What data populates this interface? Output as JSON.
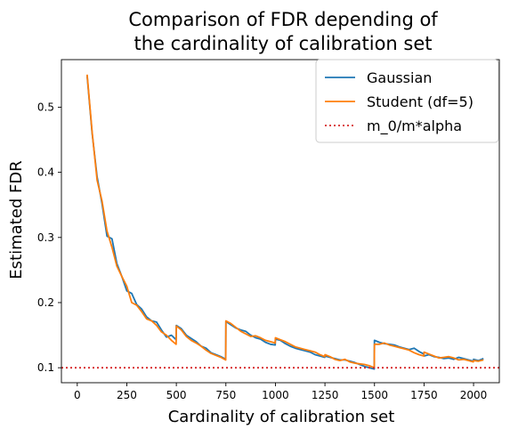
{
  "chart_data": {
    "type": "line",
    "title_line1": "Comparison of FDR depending of",
    "title_line2": "the cardinality of calibration set",
    "xlabel": "Cardinality of calibration set",
    "ylabel": "Estimated FDR",
    "xlim": [
      -80,
      2130
    ],
    "ylim": [
      0.077,
      0.573
    ],
    "xticks": [
      0,
      250,
      500,
      750,
      1000,
      1250,
      1500,
      1750,
      2000
    ],
    "yticks": [
      0.1,
      0.2,
      0.3,
      0.4,
      0.5
    ],
    "grid": false,
    "legend": "top-right",
    "hline": {
      "name": "m_0/m*alpha",
      "value": 0.1,
      "color": "#d62728",
      "style": "dotted"
    },
    "series": [
      {
        "name": "Gaussian",
        "color": "#1f77b4",
        "x": [
          50,
          75,
          100,
          125,
          150,
          175,
          200,
          225,
          250,
          275,
          300,
          325,
          350,
          375,
          400,
          425,
          450,
          475,
          499,
          500,
          525,
          550,
          575,
          600,
          625,
          650,
          675,
          700,
          725,
          749,
          750,
          775,
          800,
          825,
          850,
          875,
          900,
          925,
          950,
          975,
          999,
          1000,
          1025,
          1050,
          1075,
          1100,
          1125,
          1150,
          1175,
          1200,
          1225,
          1249,
          1250,
          1275,
          1300,
          1325,
          1350,
          1375,
          1400,
          1425,
          1450,
          1475,
          1499,
          1500,
          1525,
          1550,
          1575,
          1600,
          1625,
          1650,
          1675,
          1700,
          1725,
          1749,
          1750,
          1775,
          1800,
          1825,
          1850,
          1875,
          1900,
          1925,
          1950,
          1975,
          1999,
          2000,
          2025,
          2050
        ],
        "y": [
          0.548,
          0.46,
          0.393,
          0.352,
          0.302,
          0.298,
          0.26,
          0.24,
          0.218,
          0.214,
          0.197,
          0.19,
          0.178,
          0.172,
          0.17,
          0.158,
          0.147,
          0.15,
          0.143,
          0.165,
          0.16,
          0.15,
          0.145,
          0.14,
          0.133,
          0.13,
          0.123,
          0.12,
          0.117,
          0.113,
          0.171,
          0.166,
          0.161,
          0.158,
          0.156,
          0.15,
          0.146,
          0.144,
          0.139,
          0.136,
          0.135,
          0.144,
          0.142,
          0.137,
          0.133,
          0.13,
          0.128,
          0.126,
          0.124,
          0.12,
          0.118,
          0.116,
          0.118,
          0.116,
          0.114,
          0.112,
          0.112,
          0.11,
          0.108,
          0.105,
          0.102,
          0.1,
          0.098,
          0.142,
          0.139,
          0.137,
          0.136,
          0.135,
          0.132,
          0.13,
          0.128,
          0.13,
          0.125,
          0.121,
          0.118,
          0.12,
          0.117,
          0.116,
          0.114,
          0.115,
          0.113,
          0.116,
          0.114,
          0.112,
          0.11,
          0.113,
          0.111,
          0.114
        ]
      },
      {
        "name": "Student (df=5)",
        "color": "#ff7f0e",
        "x": [
          50,
          75,
          100,
          125,
          150,
          175,
          200,
          225,
          250,
          275,
          300,
          325,
          350,
          375,
          400,
          425,
          450,
          475,
          499,
          500,
          525,
          550,
          575,
          600,
          625,
          650,
          675,
          700,
          725,
          749,
          750,
          775,
          800,
          825,
          850,
          875,
          900,
          925,
          950,
          975,
          999,
          1000,
          1025,
          1050,
          1075,
          1100,
          1125,
          1150,
          1175,
          1200,
          1225,
          1249,
          1250,
          1275,
          1300,
          1325,
          1350,
          1375,
          1400,
          1425,
          1450,
          1475,
          1499,
          1500,
          1525,
          1550,
          1575,
          1600,
          1625,
          1650,
          1675,
          1700,
          1725,
          1749,
          1750,
          1775,
          1800,
          1825,
          1850,
          1875,
          1900,
          1925,
          1950,
          1975,
          1999,
          2000,
          2025,
          2050
        ],
        "y": [
          0.55,
          0.462,
          0.388,
          0.356,
          0.31,
          0.285,
          0.256,
          0.24,
          0.225,
          0.2,
          0.196,
          0.186,
          0.175,
          0.172,
          0.165,
          0.155,
          0.15,
          0.142,
          0.136,
          0.164,
          0.158,
          0.148,
          0.142,
          0.138,
          0.133,
          0.127,
          0.122,
          0.119,
          0.116,
          0.112,
          0.172,
          0.168,
          0.162,
          0.156,
          0.152,
          0.148,
          0.149,
          0.146,
          0.142,
          0.14,
          0.138,
          0.146,
          0.143,
          0.14,
          0.136,
          0.132,
          0.13,
          0.128,
          0.126,
          0.124,
          0.12,
          0.117,
          0.12,
          0.117,
          0.113,
          0.111,
          0.113,
          0.109,
          0.107,
          0.106,
          0.105,
          0.103,
          0.1,
          0.136,
          0.136,
          0.138,
          0.135,
          0.133,
          0.131,
          0.129,
          0.127,
          0.123,
          0.12,
          0.118,
          0.124,
          0.121,
          0.118,
          0.115,
          0.116,
          0.117,
          0.115,
          0.112,
          0.113,
          0.111,
          0.109,
          0.111,
          0.11,
          0.112
        ]
      }
    ]
  }
}
